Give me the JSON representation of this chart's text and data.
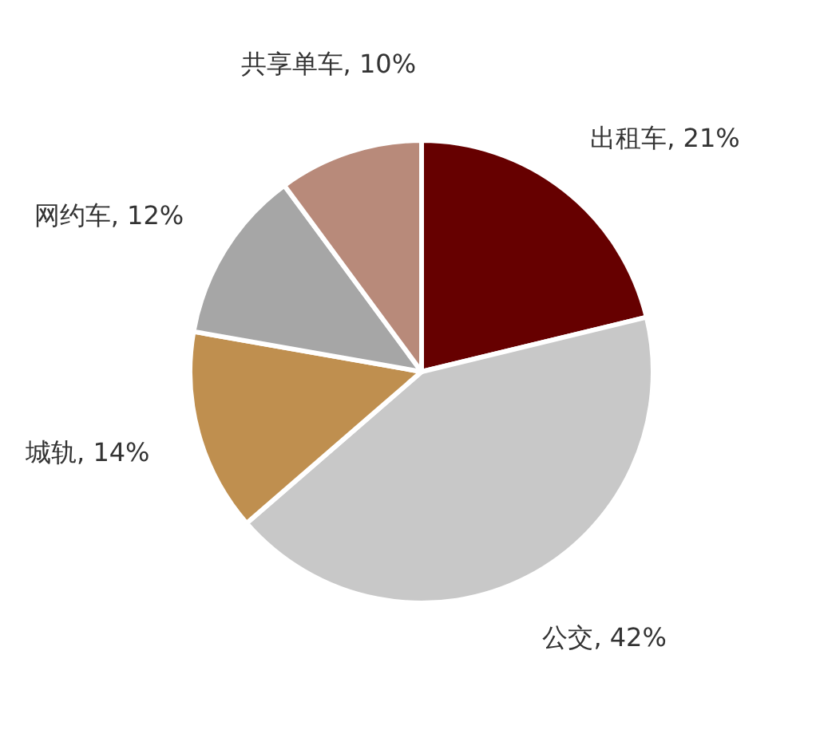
{
  "chart_data": {
    "type": "pie",
    "categories": [
      "出租车",
      "公交",
      "城轨",
      "网约车",
      "共享单车"
    ],
    "values": [
      21,
      42,
      14,
      12,
      10
    ],
    "value_labels": [
      "21%",
      "42%",
      "14%",
      "12%",
      "10%"
    ],
    "colors": [
      "#660000",
      "#c8c8c8",
      "#bf8f4f",
      "#a6a6a6",
      "#b88a7a"
    ],
    "legend": false
  }
}
